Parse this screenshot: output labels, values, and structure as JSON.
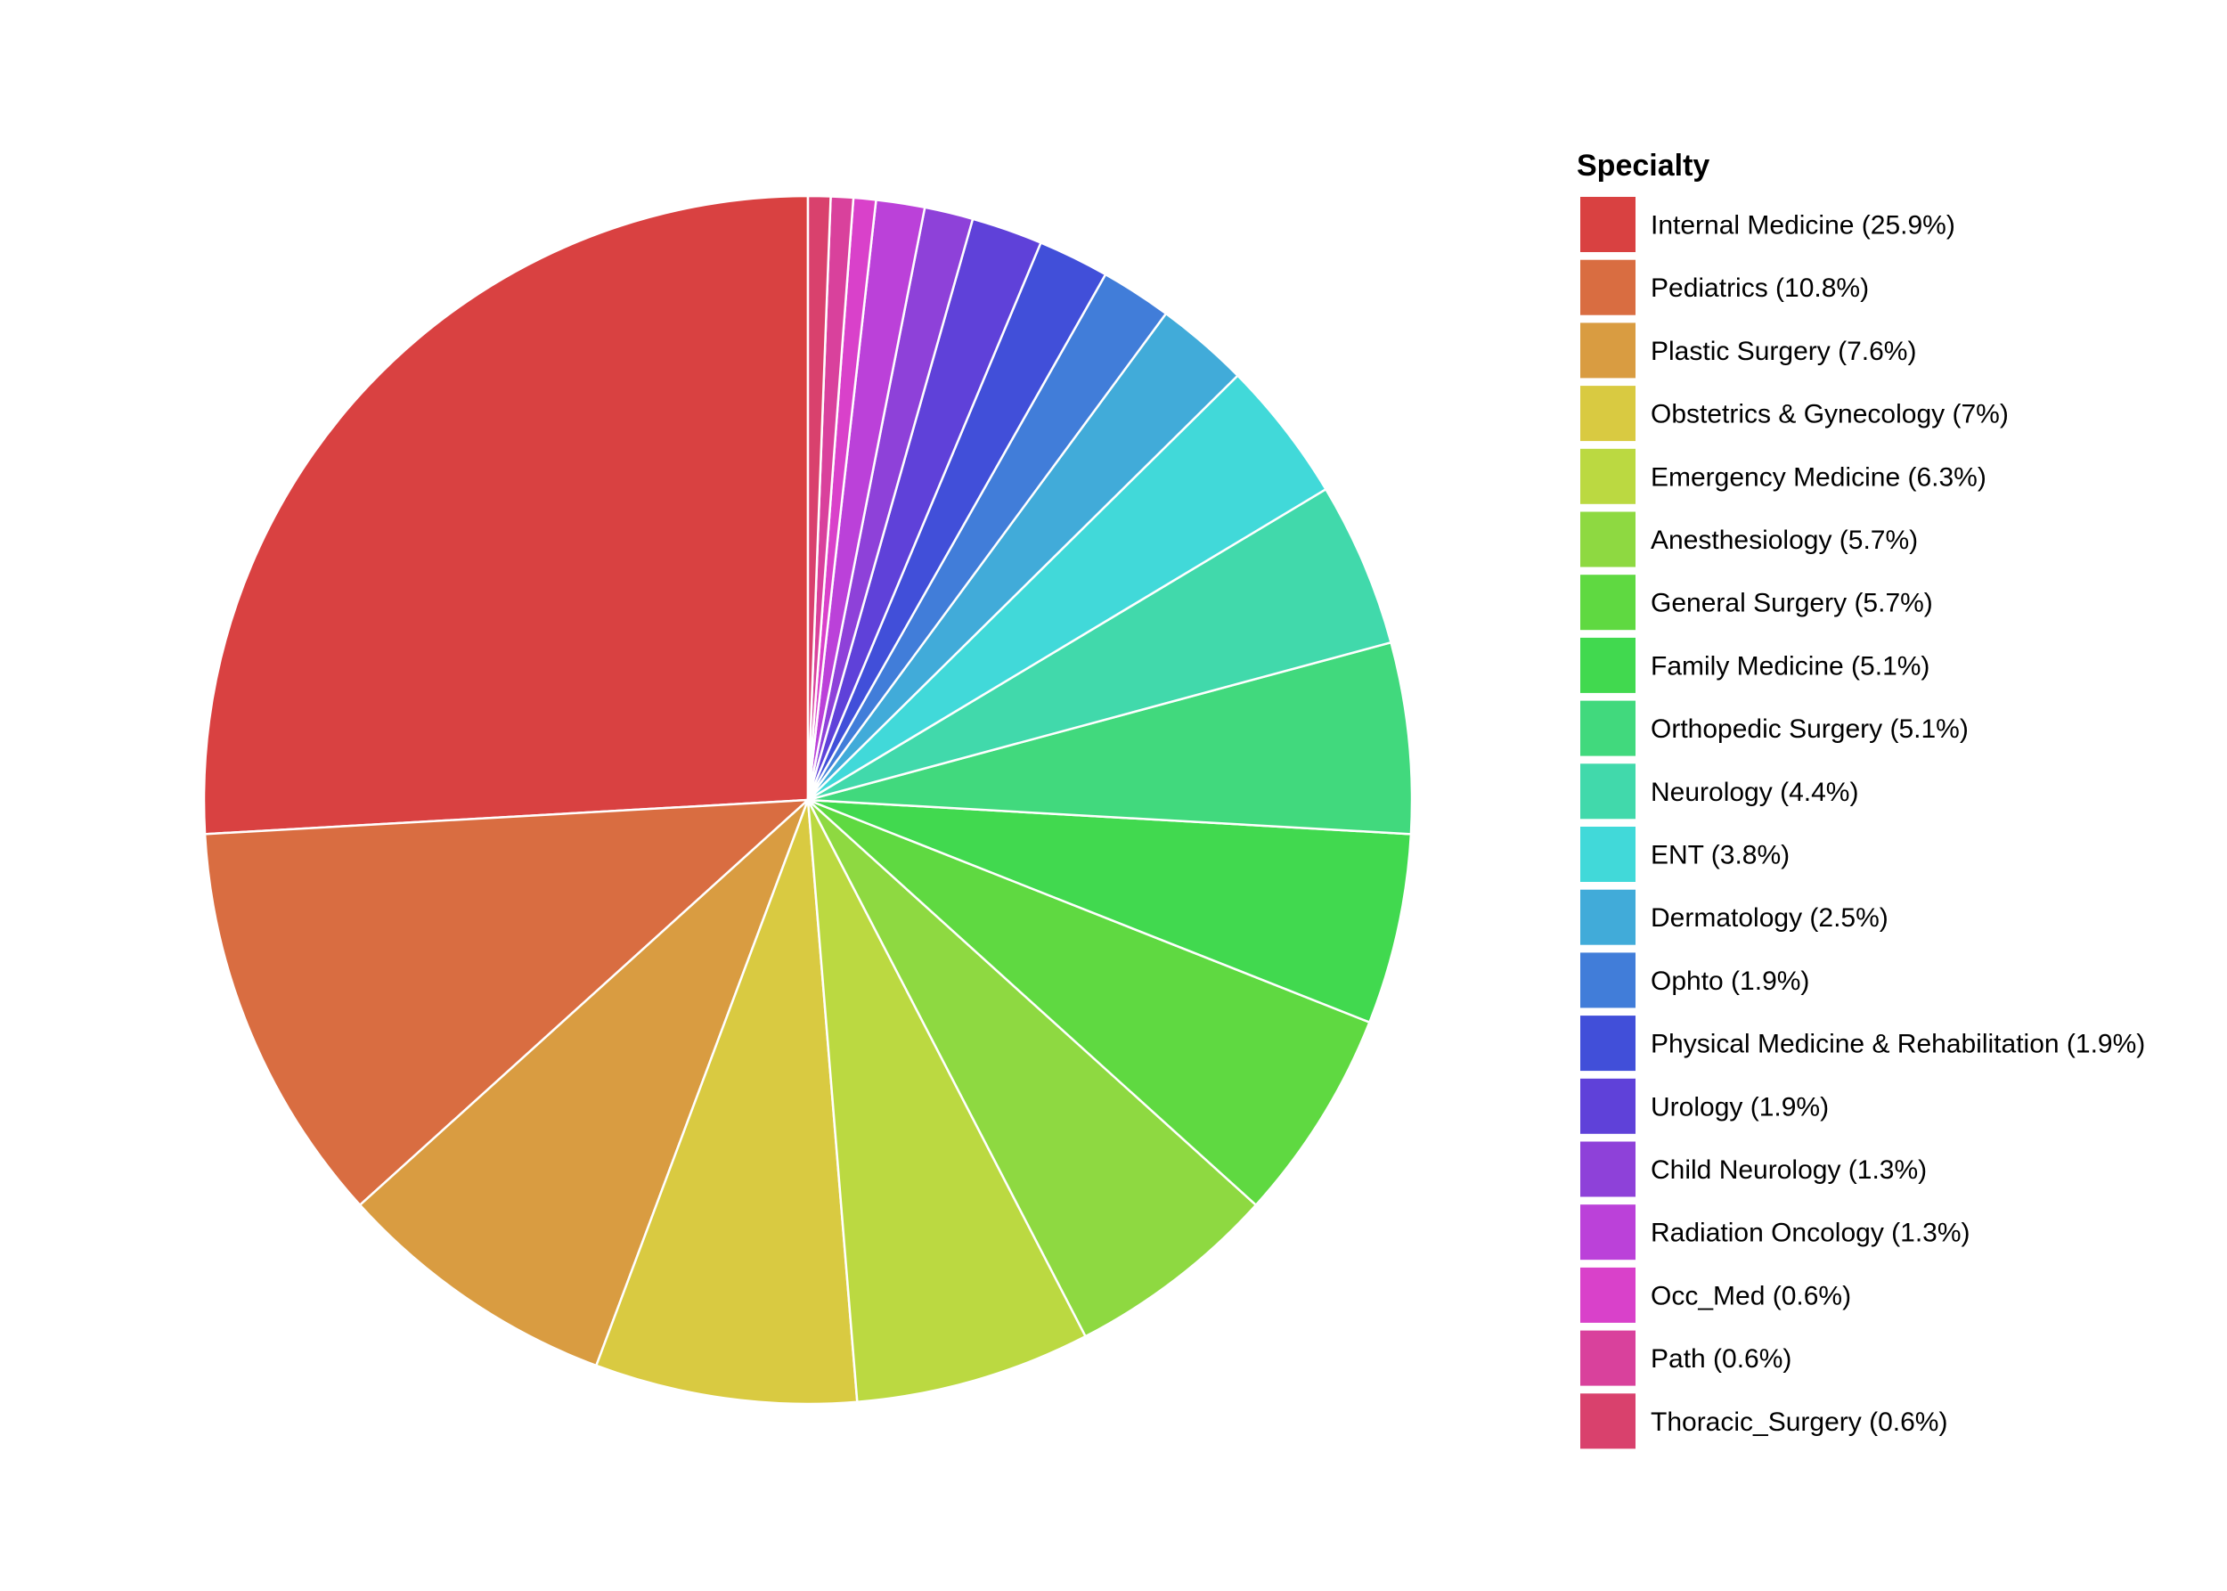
{
  "chart_data": {
    "type": "pie",
    "legend_title": "Specialty",
    "legend_position": "right",
    "slices": [
      {
        "label": "Internal Medicine (25.9%)",
        "value": 25.9,
        "color": "#d94141"
      },
      {
        "label": "Pediatrics (10.8%)",
        "value": 10.8,
        "color": "#d96d41"
      },
      {
        "label": "Plastic Surgery (7.6%)",
        "value": 7.6,
        "color": "#d99c41"
      },
      {
        "label": "Obstetrics & Gynecology (7%)",
        "value": 7.0,
        "color": "#d9ca41"
      },
      {
        "label": "Emergency Medicine (6.3%)",
        "value": 6.3,
        "color": "#bbd941"
      },
      {
        "label": "Anesthesiology (5.7%)",
        "value": 5.7,
        "color": "#8ed941"
      },
      {
        "label": "General Surgery (5.7%)",
        "value": 5.7,
        "color": "#5fd941"
      },
      {
        "label": "Family Medicine (5.1%)",
        "value": 5.1,
        "color": "#41d94f"
      },
      {
        "label": "Orthopedic Surgery (5.1%)",
        "value": 5.1,
        "color": "#41d97d"
      },
      {
        "label": "Neurology (4.4%)",
        "value": 4.4,
        "color": "#41d9ab"
      },
      {
        "label": "ENT (3.8%)",
        "value": 3.8,
        "color": "#41d9d9"
      },
      {
        "label": "Dermatology (2.5%)",
        "value": 2.5,
        "color": "#41abd9"
      },
      {
        "label": "Ophto (1.9%)",
        "value": 1.9,
        "color": "#417dd9"
      },
      {
        "label": "Physical Medicine & Rehabilitation (1.9%)",
        "value": 1.9,
        "color": "#414fd9"
      },
      {
        "label": "Urology (1.9%)",
        "value": 1.9,
        "color": "#5f41d9"
      },
      {
        "label": "Child Neurology (1.3%)",
        "value": 1.3,
        "color": "#8e41d9"
      },
      {
        "label": "Radiation Oncology (1.3%)",
        "value": 1.3,
        "color": "#bb41d9"
      },
      {
        "label": "Occ_Med (0.6%)",
        "value": 0.6,
        "color": "#d941ca"
      },
      {
        "label": "Path (0.6%)",
        "value": 0.6,
        "color": "#d9419c"
      },
      {
        "label": "Thoracic_Surgery (0.6%)",
        "value": 0.6,
        "color": "#d9416d"
      }
    ]
  }
}
